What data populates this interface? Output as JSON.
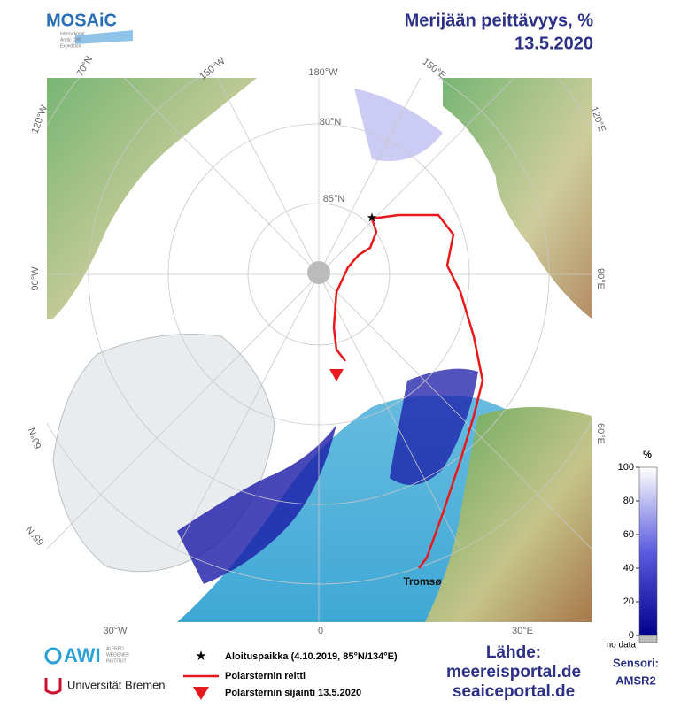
{
  "header": {
    "logo": "MOSAiC",
    "logo_subtitle": [
      "International",
      "Arctic Drift",
      "Expedition"
    ],
    "title": "Merijään peittävyys, %",
    "date": "13.5.2020"
  },
  "map": {
    "graticule_labels": [
      "180°W",
      "150°W",
      "70°N",
      "120°W",
      "90°W",
      "60°N",
      "65°N",
      "30°W",
      "0",
      "30°E",
      "60°E",
      "90°E",
      "120°E",
      "150°E",
      "80°N",
      "85°N"
    ],
    "place_label": "Tromsø"
  },
  "colorbar": {
    "unit": "%",
    "range": [
      0,
      100
    ],
    "ticks": [
      0,
      20,
      40,
      60,
      80,
      100
    ],
    "no_data": "no data"
  },
  "legend": [
    "Aloituspaikka (4.10.2019, 85°N/134°E)",
    "Polarsternin reitti",
    "Polarsternin sijainti 13.5.2020"
  ],
  "source": {
    "heading": "Lähde:",
    "sites": [
      "meereisportal.de",
      "seaiceportal.de"
    ]
  },
  "sensor": {
    "heading": "Sensori:",
    "name": "AMSR2"
  },
  "logos": {
    "awi": "AWI",
    "awi_text": [
      "ALFRED",
      "WEGENER",
      "INSTITUT"
    ],
    "bremen": "Universität Bremen"
  }
}
